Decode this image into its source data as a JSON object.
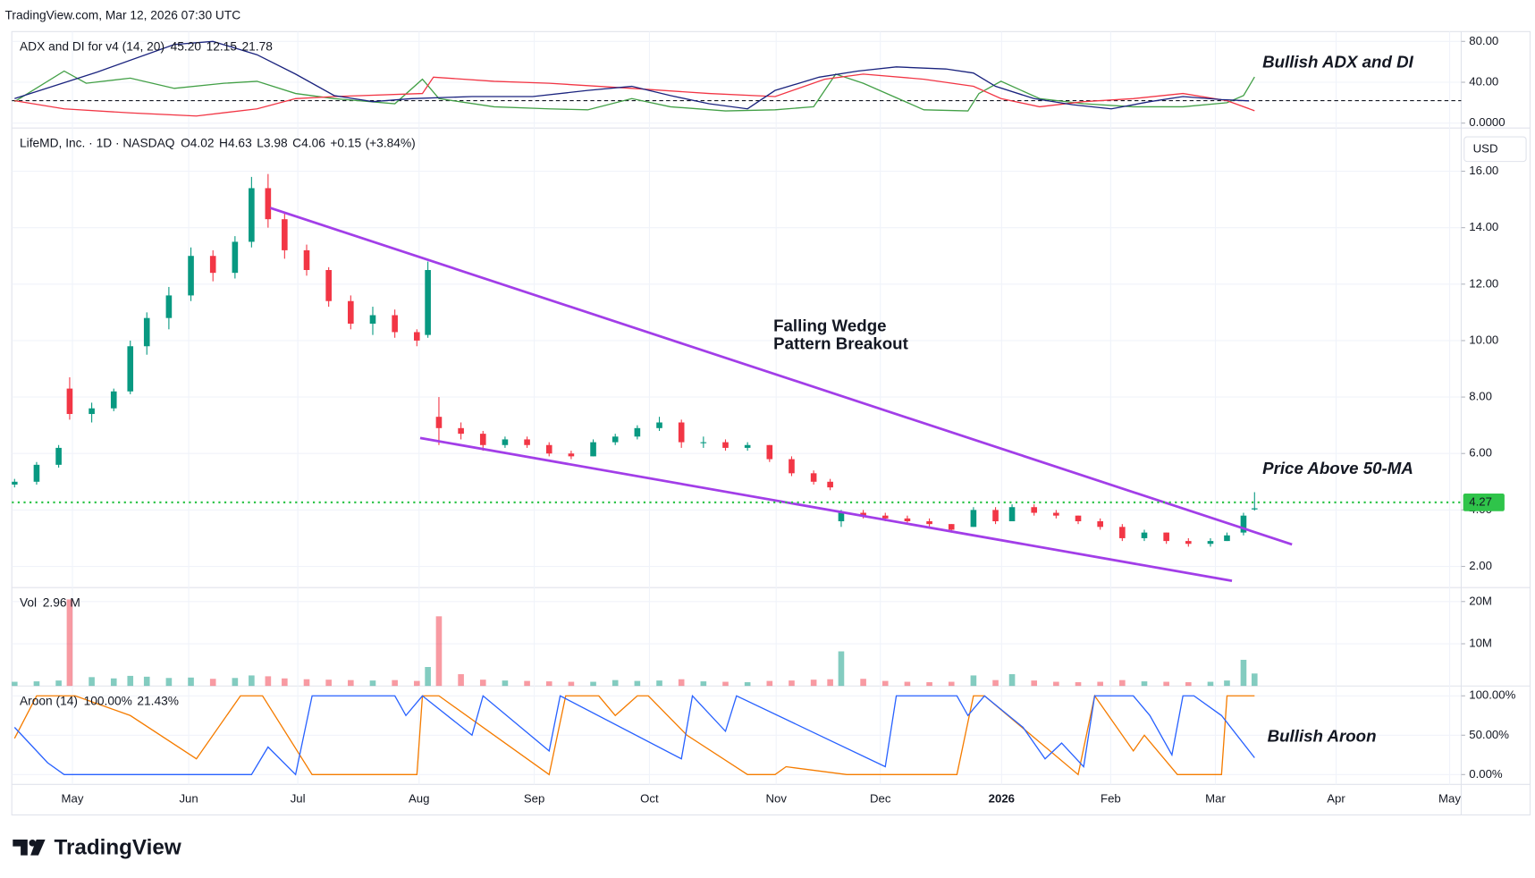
{
  "header": "TradingView.com, Mar 12, 2026 07:30 UTC",
  "footer": "TradingView",
  "chart_data": [
    {
      "type": "line",
      "title": "ADX and DI for v4 (14, 20)",
      "legend_values": [
        {
          "value": 45.2,
          "label": "45.20",
          "color": "#43a047"
        },
        {
          "value": 12.15,
          "label": "12.15",
          "color": "#f23645"
        },
        {
          "value": 21.78,
          "label": "21.78",
          "color": "#1a237e"
        }
      ],
      "ylim": [
        -4.8,
        89.6
      ],
      "yticks": [
        {
          "value": 0,
          "label": "0.0000"
        },
        {
          "value": 40,
          "label": "40.00"
        },
        {
          "value": 80,
          "label": "80.00"
        }
      ],
      "levels": [
        22
      ],
      "series": [
        {
          "color": "#43a047",
          "x": [
            0,
            9,
            13,
            21,
            29,
            38,
            44,
            51,
            58,
            69,
            74,
            77,
            87,
            97,
            104,
            112,
            119,
            129,
            138,
            145,
            149,
            154,
            165,
            173,
            175,
            179,
            186,
            194,
            203,
            212,
            220,
            223,
            225
          ],
          "values": [
            21,
            51,
            39,
            44,
            34,
            39,
            41,
            29,
            24,
            19,
            43,
            24,
            16,
            14,
            13,
            24,
            16,
            12,
            13,
            16,
            48,
            39,
            13,
            12,
            29,
            41,
            24,
            19,
            16,
            16,
            20,
            27,
            45.2
          ]
        },
        {
          "color": "#f23645",
          "x": [
            0,
            9,
            21,
            33,
            44,
            51,
            58,
            74,
            76,
            87,
            97,
            112,
            126,
            138,
            147,
            154,
            165,
            174,
            179,
            186,
            194,
            203,
            212,
            220,
            225
          ],
          "values": [
            22,
            14,
            10,
            7,
            14,
            24,
            26,
            29,
            45,
            41,
            39,
            34,
            29,
            26,
            43,
            48,
            43,
            36,
            24,
            16,
            21,
            24,
            29,
            22,
            12.15
          ]
        },
        {
          "color": "#1a237e",
          "x": [
            0,
            15,
            29,
            36,
            44,
            51,
            58,
            65,
            72,
            83,
            94,
            104,
            112,
            119,
            126,
            133,
            138,
            146,
            153,
            160,
            169,
            174,
            178,
            185,
            192,
            199,
            206,
            212,
            219,
            224
          ],
          "values": [
            24,
            50,
            77,
            80,
            67,
            48,
            27,
            21,
            24,
            26,
            26,
            32,
            36,
            27,
            19,
            14,
            32,
            45,
            51,
            55,
            53,
            49,
            36,
            24,
            18,
            14,
            21,
            26,
            23,
            21.78
          ]
        }
      ],
      "annotations": [
        {
          "text": "Bullish ADX and DI",
          "color": "#1a1ad6"
        }
      ]
    },
    {
      "type": "candlestick",
      "title": "LifeMD, Inc. · 1D · NASDAQ",
      "currency": "USD",
      "ohlc": [
        {
          "label": "O",
          "value": 4.02
        },
        {
          "label": "H",
          "value": 4.63
        },
        {
          "label": "L",
          "value": 3.98
        },
        {
          "label": "C",
          "value": 4.06
        }
      ],
      "change": {
        "value": 0.15,
        "label": "+0.15"
      },
      "change_pct": {
        "value": 3.84,
        "label": "(+3.84%)"
      },
      "x": [
        0,
        4,
        8,
        10,
        14,
        18,
        21,
        24,
        28,
        32,
        36,
        40,
        43,
        46,
        49,
        53,
        57,
        61,
        65,
        69,
        73,
        75,
        77,
        81,
        85,
        89,
        93,
        97,
        101,
        105,
        109,
        113,
        117,
        121,
        125,
        129,
        133,
        137,
        141,
        145,
        148,
        150,
        154,
        158,
        162,
        166,
        170,
        174,
        178,
        181,
        185,
        189,
        193,
        197,
        201,
        205,
        209,
        213,
        217,
        220,
        223,
        225
      ],
      "open": [
        4.9,
        5.0,
        5.6,
        8.3,
        7.4,
        7.6,
        8.2,
        9.8,
        10.8,
        11.6,
        13.0,
        12.4,
        13.5,
        15.4,
        14.3,
        13.2,
        12.5,
        11.4,
        10.6,
        10.9,
        10.3,
        10.2,
        7.3,
        6.9,
        6.7,
        6.3,
        6.5,
        6.3,
        6.0,
        5.9,
        6.4,
        6.6,
        6.9,
        7.1,
        6.4,
        6.4,
        6.2,
        6.3,
        5.8,
        5.3,
        5.0,
        3.6,
        3.9,
        3.8,
        3.7,
        3.6,
        3.5,
        3.4,
        4.0,
        3.6,
        4.1,
        3.9,
        3.8,
        3.6,
        3.4,
        3.0,
        3.2,
        2.9,
        2.8,
        2.9,
        3.2,
        4.02
      ],
      "high": [
        5.1,
        5.7,
        6.3,
        8.7,
        7.8,
        8.3,
        10.0,
        11.0,
        11.9,
        13.3,
        13.2,
        13.7,
        15.8,
        15.9,
        14.5,
        13.4,
        12.6,
        11.6,
        11.2,
        11.1,
        10.4,
        12.8,
        8.0,
        7.1,
        6.8,
        6.6,
        6.6,
        6.4,
        6.1,
        6.5,
        6.7,
        7.0,
        7.3,
        7.2,
        6.6,
        6.5,
        6.4,
        6.3,
        5.9,
        5.4,
        5.1,
        4.0,
        4.0,
        3.9,
        3.8,
        3.7,
        3.5,
        4.1,
        4.1,
        4.2,
        4.2,
        4.0,
        3.8,
        3.7,
        3.5,
        3.3,
        3.2,
        3.0,
        3.0,
        3.2,
        3.9,
        4.63
      ],
      "low": [
        4.8,
        4.9,
        5.5,
        7.2,
        7.1,
        7.5,
        8.1,
        9.5,
        10.4,
        11.4,
        12.1,
        12.2,
        13.3,
        14.0,
        12.9,
        12.3,
        11.2,
        10.4,
        10.2,
        10.1,
        9.8,
        10.1,
        6.3,
        6.5,
        6.1,
        6.2,
        6.2,
        5.9,
        5.8,
        5.9,
        6.3,
        6.5,
        6.8,
        6.2,
        6.2,
        6.1,
        6.1,
        5.7,
        5.2,
        4.9,
        4.7,
        3.4,
        3.7,
        3.6,
        3.5,
        3.4,
        3.2,
        3.4,
        3.5,
        3.6,
        3.8,
        3.7,
        3.5,
        3.3,
        2.9,
        2.9,
        2.8,
        2.7,
        2.7,
        2.9,
        3.1,
        3.98
      ],
      "close": [
        5.0,
        5.6,
        6.2,
        7.4,
        7.6,
        8.2,
        9.8,
        10.8,
        11.6,
        13.0,
        12.4,
        13.5,
        15.4,
        14.3,
        13.2,
        12.5,
        11.4,
        10.6,
        10.9,
        10.3,
        10.0,
        12.5,
        6.9,
        6.7,
        6.3,
        6.5,
        6.3,
        6.0,
        5.9,
        6.4,
        6.6,
        6.9,
        7.1,
        6.4,
        6.4,
        6.2,
        6.3,
        5.8,
        5.3,
        5.0,
        4.8,
        3.9,
        3.8,
        3.7,
        3.6,
        3.5,
        3.3,
        4.0,
        3.6,
        4.1,
        3.9,
        3.8,
        3.6,
        3.4,
        3.0,
        3.2,
        2.9,
        2.8,
        2.9,
        3.1,
        3.8,
        4.06
      ],
      "up_color": "#089981",
      "down_color": "#f23645",
      "ylim": [
        1.25,
        17.53
      ],
      "yticks": [
        {
          "value": 2,
          "label": "2.00"
        },
        {
          "value": 4,
          "label": "4.00"
        },
        {
          "value": 6,
          "label": "6.00"
        },
        {
          "value": 8,
          "label": "8.00"
        },
        {
          "value": 10,
          "label": "10.00"
        },
        {
          "value": 12,
          "label": "12.00"
        },
        {
          "value": 14,
          "label": "14.00"
        },
        {
          "value": 16,
          "label": "16.00"
        }
      ],
      "xlim": [
        -0.5,
        262.5
      ],
      "xticks": [
        {
          "value": 10.5,
          "label": "May"
        },
        {
          "value": 31.6,
          "label": "Jun"
        },
        {
          "value": 51.4,
          "label": "Jul"
        },
        {
          "value": 73.4,
          "label": "Aug"
        },
        {
          "value": 94.3,
          "label": "Sep"
        },
        {
          "value": 115.2,
          "label": "Oct"
        },
        {
          "value": 138.2,
          "label": "Nov"
        },
        {
          "value": 157.1,
          "label": "Dec"
        },
        {
          "value": 179.1,
          "label": "2026"
        },
        {
          "value": 198.9,
          "label": "Feb"
        },
        {
          "value": 217.9,
          "label": "Mar"
        },
        {
          "value": 239.8,
          "label": "Apr"
        },
        {
          "value": 260.4,
          "label": "May"
        }
      ],
      "grid": true,
      "last_price": 4.27,
      "last_price_color": "#2fc44a",
      "trendlines": [
        {
          "x": [
            46.4,
            231.8
          ],
          "y": [
            14.7,
            2.78
          ]
        },
        {
          "x": [
            73.6,
            220.9
          ],
          "y": [
            6.55,
            1.49
          ]
        }
      ],
      "trendline_color": "#a23ee8",
      "annotations": [
        {
          "text": "Falling Wedge",
          "color": "#9b27e0"
        },
        {
          "text": "Pattern Breakout",
          "color": "#9b27e0"
        },
        {
          "text": "Price Above 50-MA",
          "color": "#1a1ad6"
        }
      ]
    },
    {
      "type": "bar",
      "title": "Vol",
      "legend_values": [
        {
          "value": 2.96,
          "label": "2.96 M",
          "color": "#089981"
        }
      ],
      "x": [
        0,
        4,
        8,
        10,
        14,
        18,
        21,
        24,
        28,
        32,
        36,
        40,
        43,
        46,
        49,
        53,
        57,
        61,
        65,
        69,
        73,
        75,
        77,
        81,
        85,
        89,
        93,
        97,
        101,
        105,
        109,
        113,
        117,
        121,
        125,
        129,
        133,
        137,
        141,
        145,
        148,
        150,
        154,
        158,
        162,
        166,
        170,
        174,
        178,
        181,
        185,
        189,
        193,
        197,
        201,
        205,
        209,
        213,
        217,
        220,
        223,
        225
      ],
      "values": [
        1.0,
        1.1,
        1.3,
        20.5,
        2.1,
        1.8,
        2.4,
        2.2,
        1.9,
        2.0,
        1.7,
        1.9,
        2.5,
        2.3,
        1.8,
        1.6,
        1.5,
        1.4,
        1.3,
        1.4,
        1.2,
        4.5,
        16.5,
        2.8,
        1.5,
        1.3,
        1.2,
        1.1,
        1.0,
        1.0,
        1.4,
        1.2,
        1.3,
        1.6,
        1.1,
        1.0,
        0.9,
        1.2,
        1.3,
        1.5,
        1.6,
        8.2,
        1.7,
        1.2,
        1.0,
        0.9,
        1.0,
        2.5,
        1.4,
        2.8,
        1.3,
        1.0,
        0.9,
        1.0,
        1.4,
        1.1,
        1.0,
        0.9,
        1.0,
        1.3,
        6.2,
        2.96
      ],
      "ylim": [
        0,
        23.3
      ],
      "yticks": [
        {
          "value": 10,
          "label": "10M"
        },
        {
          "value": 20,
          "label": "20M"
        }
      ]
    },
    {
      "type": "line",
      "title": "Aroon (14)",
      "legend_values": [
        {
          "value": 100,
          "label": "100.00%",
          "color": "#f57c00"
        },
        {
          "value": 21.43,
          "label": "21.43%",
          "color": "#2962ff"
        }
      ],
      "ylim": [
        -12.5,
        112.5
      ],
      "yticks": [
        {
          "value": 0,
          "label": "0.00%"
        },
        {
          "value": 50,
          "label": "50.00%"
        },
        {
          "value": 100,
          "label": "100.00%"
        }
      ],
      "series": [
        {
          "color": "#f57c00",
          "x": [
            0,
            4,
            11,
            21,
            33,
            41,
            45,
            54,
            73,
            74,
            77,
            97,
            100,
            106,
            109,
            113,
            115,
            122,
            133,
            138,
            140,
            151,
            154,
            171,
            174,
            176,
            193,
            196,
            203,
            205,
            211,
            219,
            220,
            225
          ],
          "values": [
            46,
            100,
            100,
            75,
            20,
            100,
            100,
            0,
            0,
            100,
            100,
            0,
            100,
            100,
            75,
            100,
            100,
            50,
            0,
            0,
            10,
            0,
            0,
            0,
            100,
            100,
            0,
            100,
            30,
            50,
            0,
            0,
            100,
            100
          ]
        },
        {
          "color": "#2962ff",
          "x": [
            0,
            6,
            9,
            19,
            43,
            46,
            51,
            54,
            56,
            69,
            71,
            74,
            83,
            85,
            97,
            99,
            121,
            123,
            129,
            131,
            158,
            160,
            171,
            173,
            176,
            183,
            187,
            190,
            194,
            196,
            203,
            206,
            210,
            212,
            214,
            219,
            225
          ],
          "values": [
            60,
            15,
            0,
            0,
            0,
            35,
            0,
            100,
            100,
            100,
            75,
            100,
            50,
            100,
            30,
            100,
            20,
            100,
            55,
            100,
            10,
            100,
            100,
            75,
            100,
            60,
            20,
            40,
            10,
            100,
            100,
            75,
            25,
            100,
            100,
            75,
            21.43
          ]
        }
      ],
      "annotations": [
        {
          "text": "Bullish Aroon",
          "color": "#1a1ad6"
        }
      ]
    }
  ]
}
